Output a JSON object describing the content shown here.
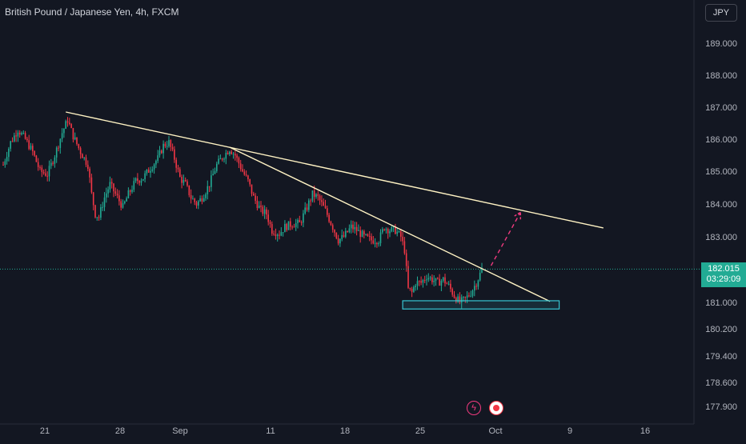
{
  "header": {
    "title": "British Pound / Japanese Yen, 4h, FXCM",
    "currency": "JPY"
  },
  "price_label": {
    "price": "182.015",
    "countdown": "03:29:09"
  },
  "colors": {
    "background": "#131722",
    "up": "#22ab94",
    "down": "#f23645",
    "trendline": "#fff3c4",
    "support_box": "#37c6d3",
    "projection": "#f23a7f",
    "last_price_line": "#22ab94"
  },
  "toolbar": {
    "bolt_icon": "bolt-icon",
    "record_icon": "record-icon"
  },
  "chart_data": {
    "type": "candlestick",
    "title": "British Pound / Japanese Yen, 4h, FXCM",
    "x_ticks": [
      "21",
      "28",
      "Sep",
      "11",
      "18",
      "25",
      "Oct",
      "9",
      "16"
    ],
    "y_ticks": [
      "189.000",
      "188.000",
      "187.000",
      "186.000",
      "185.000",
      "184.000",
      "183.000",
      "181.000",
      "180.200",
      "179.400",
      "178.600",
      "177.900"
    ],
    "last_price": 182.015,
    "path_points": [
      [
        0,
        185.2
      ],
      [
        4,
        185.9
      ],
      [
        8,
        186.3
      ],
      [
        12,
        186.0
      ],
      [
        16,
        185.6
      ],
      [
        20,
        185.0
      ],
      [
        24,
        184.9
      ],
      [
        28,
        185.5
      ],
      [
        32,
        186.2
      ],
      [
        35,
        186.6
      ],
      [
        38,
        186.1
      ],
      [
        42,
        185.6
      ],
      [
        46,
        185.2
      ],
      [
        48,
        184.3
      ],
      [
        50,
        183.7
      ],
      [
        52,
        183.6
      ],
      [
        55,
        184.2
      ],
      [
        58,
        184.6
      ],
      [
        62,
        184.2
      ],
      [
        65,
        183.9
      ],
      [
        68,
        184.3
      ],
      [
        72,
        184.7
      ],
      [
        76,
        184.8
      ],
      [
        80,
        185.1
      ],
      [
        84,
        185.4
      ],
      [
        87,
        185.8
      ],
      [
        90,
        185.9
      ],
      [
        93,
        185.4
      ],
      [
        96,
        184.8
      ],
      [
        99,
        184.6
      ],
      [
        102,
        184.2
      ],
      [
        105,
        184.0
      ],
      [
        108,
        184.2
      ],
      [
        112,
        184.6
      ],
      [
        116,
        185.2
      ],
      [
        120,
        185.5
      ],
      [
        123,
        185.7
      ],
      [
        126,
        185.5
      ],
      [
        130,
        185.0
      ],
      [
        133,
        184.7
      ],
      [
        136,
        184.2
      ],
      [
        140,
        183.8
      ],
      [
        143,
        183.7
      ],
      [
        146,
        183.2
      ],
      [
        150,
        183.1
      ],
      [
        153,
        183.3
      ],
      [
        157,
        183.4
      ],
      [
        161,
        183.4
      ],
      [
        165,
        183.9
      ],
      [
        168,
        184.3
      ],
      [
        171,
        184.2
      ],
      [
        175,
        183.8
      ],
      [
        179,
        183.3
      ],
      [
        182,
        182.9
      ],
      [
        185,
        183.0
      ],
      [
        189,
        183.3
      ],
      [
        192,
        183.2
      ],
      [
        196,
        183.0
      ],
      [
        200,
        182.9
      ],
      [
        204,
        182.9
      ],
      [
        207,
        183.3
      ],
      [
        210,
        183.2
      ],
      [
        213,
        183.2
      ],
      [
        216,
        183.0
      ],
      [
        218,
        182.6
      ],
      [
        220,
        181.4
      ],
      [
        222,
        181.3
      ],
      [
        224,
        181.6
      ],
      [
        227,
        181.6
      ],
      [
        230,
        181.8
      ],
      [
        233,
        181.7
      ],
      [
        236,
        181.6
      ],
      [
        239,
        181.7
      ],
      [
        242,
        181.5
      ],
      [
        245,
        181.2
      ],
      [
        248,
        181.0
      ],
      [
        251,
        181.1
      ],
      [
        254,
        181.3
      ],
      [
        257,
        181.6
      ],
      [
        260,
        182.0
      ]
    ],
    "trendlines": [
      {
        "name": "",
        "from": {
          "t": 34,
          "p": 186.85
        },
        "to": {
          "t": 326,
          "p": 183.27
        }
      },
      {
        "name": "",
        "from": {
          "t": 123,
          "p": 185.75
        },
        "to": {
          "t": 297,
          "p": 181.03
        }
      }
    ],
    "support_zone": {
      "t_start": 217,
      "t_end": 302,
      "p_top": 181.05,
      "p_bottom": 180.8
    },
    "projection": {
      "from": {
        "t": 265,
        "p": 182.12
      },
      "to": {
        "t": 281,
        "p": 183.75
      }
    },
    "time_range": [
      0,
      363
    ],
    "grid": false,
    "legend": "none"
  }
}
